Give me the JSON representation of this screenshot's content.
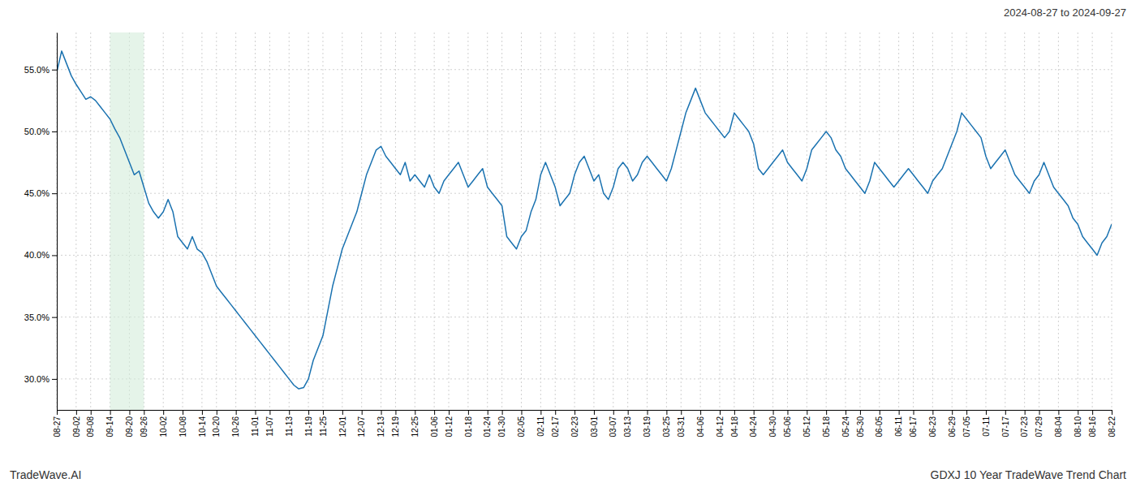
{
  "chart_data": {
    "type": "line",
    "title": "GDXJ 10 Year TradeWave Trend Chart",
    "subtitle": "2024-08-27 to 2024-09-27",
    "annotations": [
      "TradeWave.AI"
    ],
    "color": "#1a72b0",
    "grid": true,
    "shade": {
      "from": "09-14",
      "to": "09-26",
      "color": "#d4edda"
    },
    "ylim": [
      27.5,
      58.0
    ],
    "yticks": [
      {
        "value": 30.0,
        "label": "30.0%"
      },
      {
        "value": 35.0,
        "label": "35.0%"
      },
      {
        "value": 40.0,
        "label": "40.0%"
      },
      {
        "value": 45.0,
        "label": "45.0%"
      },
      {
        "value": 50.0,
        "label": "50.0%"
      },
      {
        "value": 55.0,
        "label": "55.0%"
      }
    ],
    "categories": [
      "08-27",
      null,
      null,
      null,
      "09-02",
      null,
      null,
      "09-08",
      null,
      null,
      null,
      "09-14",
      null,
      null,
      null,
      "09-20",
      null,
      null,
      "09-26",
      null,
      null,
      null,
      "10-02",
      null,
      null,
      null,
      "10-08",
      null,
      null,
      null,
      "10-14",
      null,
      null,
      "10-20",
      null,
      null,
      null,
      "10-26",
      null,
      null,
      null,
      "11-01",
      null,
      null,
      "11-07",
      null,
      null,
      null,
      "11-13",
      null,
      null,
      null,
      "11-19",
      null,
      null,
      "11-25",
      null,
      null,
      null,
      "12-01",
      null,
      null,
      null,
      "12-07",
      null,
      null,
      null,
      "12-13",
      null,
      null,
      "12-19",
      null,
      null,
      null,
      "12-25",
      null,
      null,
      null,
      "01-06",
      null,
      null,
      "01-12",
      null,
      null,
      null,
      "01-18",
      null,
      null,
      null,
      "01-24",
      null,
      null,
      "01-30",
      null,
      null,
      null,
      "02-05",
      null,
      null,
      null,
      "02-11",
      null,
      null,
      "02-17",
      null,
      null,
      null,
      "02-23",
      null,
      null,
      null,
      "03-01",
      null,
      null,
      null,
      "03-07",
      null,
      null,
      "03-13",
      null,
      null,
      null,
      "03-19",
      null,
      null,
      null,
      "03-25",
      null,
      null,
      "03-31",
      null,
      null,
      null,
      "04-06",
      null,
      null,
      null,
      "04-12",
      null,
      null,
      "04-18",
      null,
      null,
      null,
      "04-24",
      null,
      null,
      null,
      "04-30",
      null,
      null,
      "05-06",
      null,
      null,
      null,
      "05-12",
      null,
      null,
      null,
      "05-18",
      null,
      null,
      null,
      "05-24",
      null,
      null,
      "05-30",
      null,
      null,
      null,
      "06-05",
      null,
      null,
      null,
      "06-11",
      null,
      null,
      "06-17",
      null,
      null,
      null,
      "06-23",
      null,
      null,
      null,
      "06-29",
      null,
      null,
      "07-05",
      null,
      null,
      null,
      "07-11",
      null,
      null,
      null,
      "07-17",
      null,
      null,
      null,
      "07-23",
      null,
      null,
      "07-29",
      null,
      null,
      null,
      "08-04",
      null,
      null,
      null,
      "08-10",
      null,
      null,
      "08-16",
      null,
      null,
      null,
      "08-22"
    ],
    "values": [
      54.8,
      56.5,
      55.5,
      54.5,
      53.8,
      53.2,
      52.6,
      52.8,
      52.5,
      52.0,
      51.5,
      51.0,
      50.2,
      49.5,
      48.5,
      47.5,
      46.5,
      46.8,
      45.5,
      44.2,
      43.5,
      43.0,
      43.5,
      44.5,
      43.5,
      41.5,
      41.0,
      40.5,
      41.5,
      40.5,
      40.2,
      39.5,
      38.5,
      37.5,
      37.0,
      36.5,
      36.0,
      35.5,
      35.0,
      34.5,
      34.0,
      33.5,
      33.0,
      32.5,
      32.0,
      31.5,
      31.0,
      30.5,
      30.0,
      29.5,
      29.2,
      29.3,
      30.0,
      31.5,
      32.5,
      33.5,
      35.5,
      37.5,
      39.0,
      40.5,
      41.5,
      42.5,
      43.5,
      45.0,
      46.5,
      47.5,
      48.5,
      48.8,
      48.0,
      47.5,
      47.0,
      46.5,
      47.5,
      46.0,
      46.5,
      46.0,
      45.5,
      46.5,
      45.5,
      45.0,
      46.0,
      46.5,
      47.0,
      47.5,
      46.5,
      45.5,
      46.0,
      46.5,
      47.0,
      45.5,
      45.0,
      44.5,
      44.0,
      41.5,
      41.0,
      40.5,
      41.5,
      42.0,
      43.5,
      44.5,
      46.5,
      47.5,
      46.5,
      45.5,
      44.0,
      44.5,
      45.0,
      46.5,
      47.5,
      48.0,
      47.0,
      46.0,
      46.5,
      45.0,
      44.5,
      45.5,
      47.0,
      47.5,
      47.0,
      46.0,
      46.5,
      47.5,
      48.0,
      47.5,
      47.0,
      46.5,
      46.0,
      47.0,
      48.5,
      50.0,
      51.5,
      52.5,
      53.5,
      52.5,
      51.5,
      51.0,
      50.5,
      50.0,
      49.5,
      50.0,
      51.5,
      51.0,
      50.5,
      50.0,
      49.0,
      47.0,
      46.5,
      47.0,
      47.5,
      48.0,
      48.5,
      47.5,
      47.0,
      46.5,
      46.0,
      47.0,
      48.5,
      49.0,
      49.5,
      50.0,
      49.5,
      48.5,
      48.0,
      47.0,
      46.5,
      46.0,
      45.5,
      45.0,
      46.0,
      47.5,
      47.0,
      46.5,
      46.0,
      45.5,
      46.0,
      46.5,
      47.0,
      46.5,
      46.0,
      45.5,
      45.0,
      46.0,
      46.5,
      47.0,
      48.0,
      49.0,
      50.0,
      51.5,
      51.0,
      50.5,
      50.0,
      49.5,
      48.0,
      47.0,
      47.5,
      48.0,
      48.5,
      47.5,
      46.5,
      46.0,
      45.5,
      45.0,
      46.0,
      46.5,
      47.5,
      46.5,
      45.5,
      45.0,
      44.5,
      44.0,
      43.0,
      42.5,
      41.5,
      41.0,
      40.5,
      40.0,
      41.0,
      41.5,
      42.5
    ]
  }
}
